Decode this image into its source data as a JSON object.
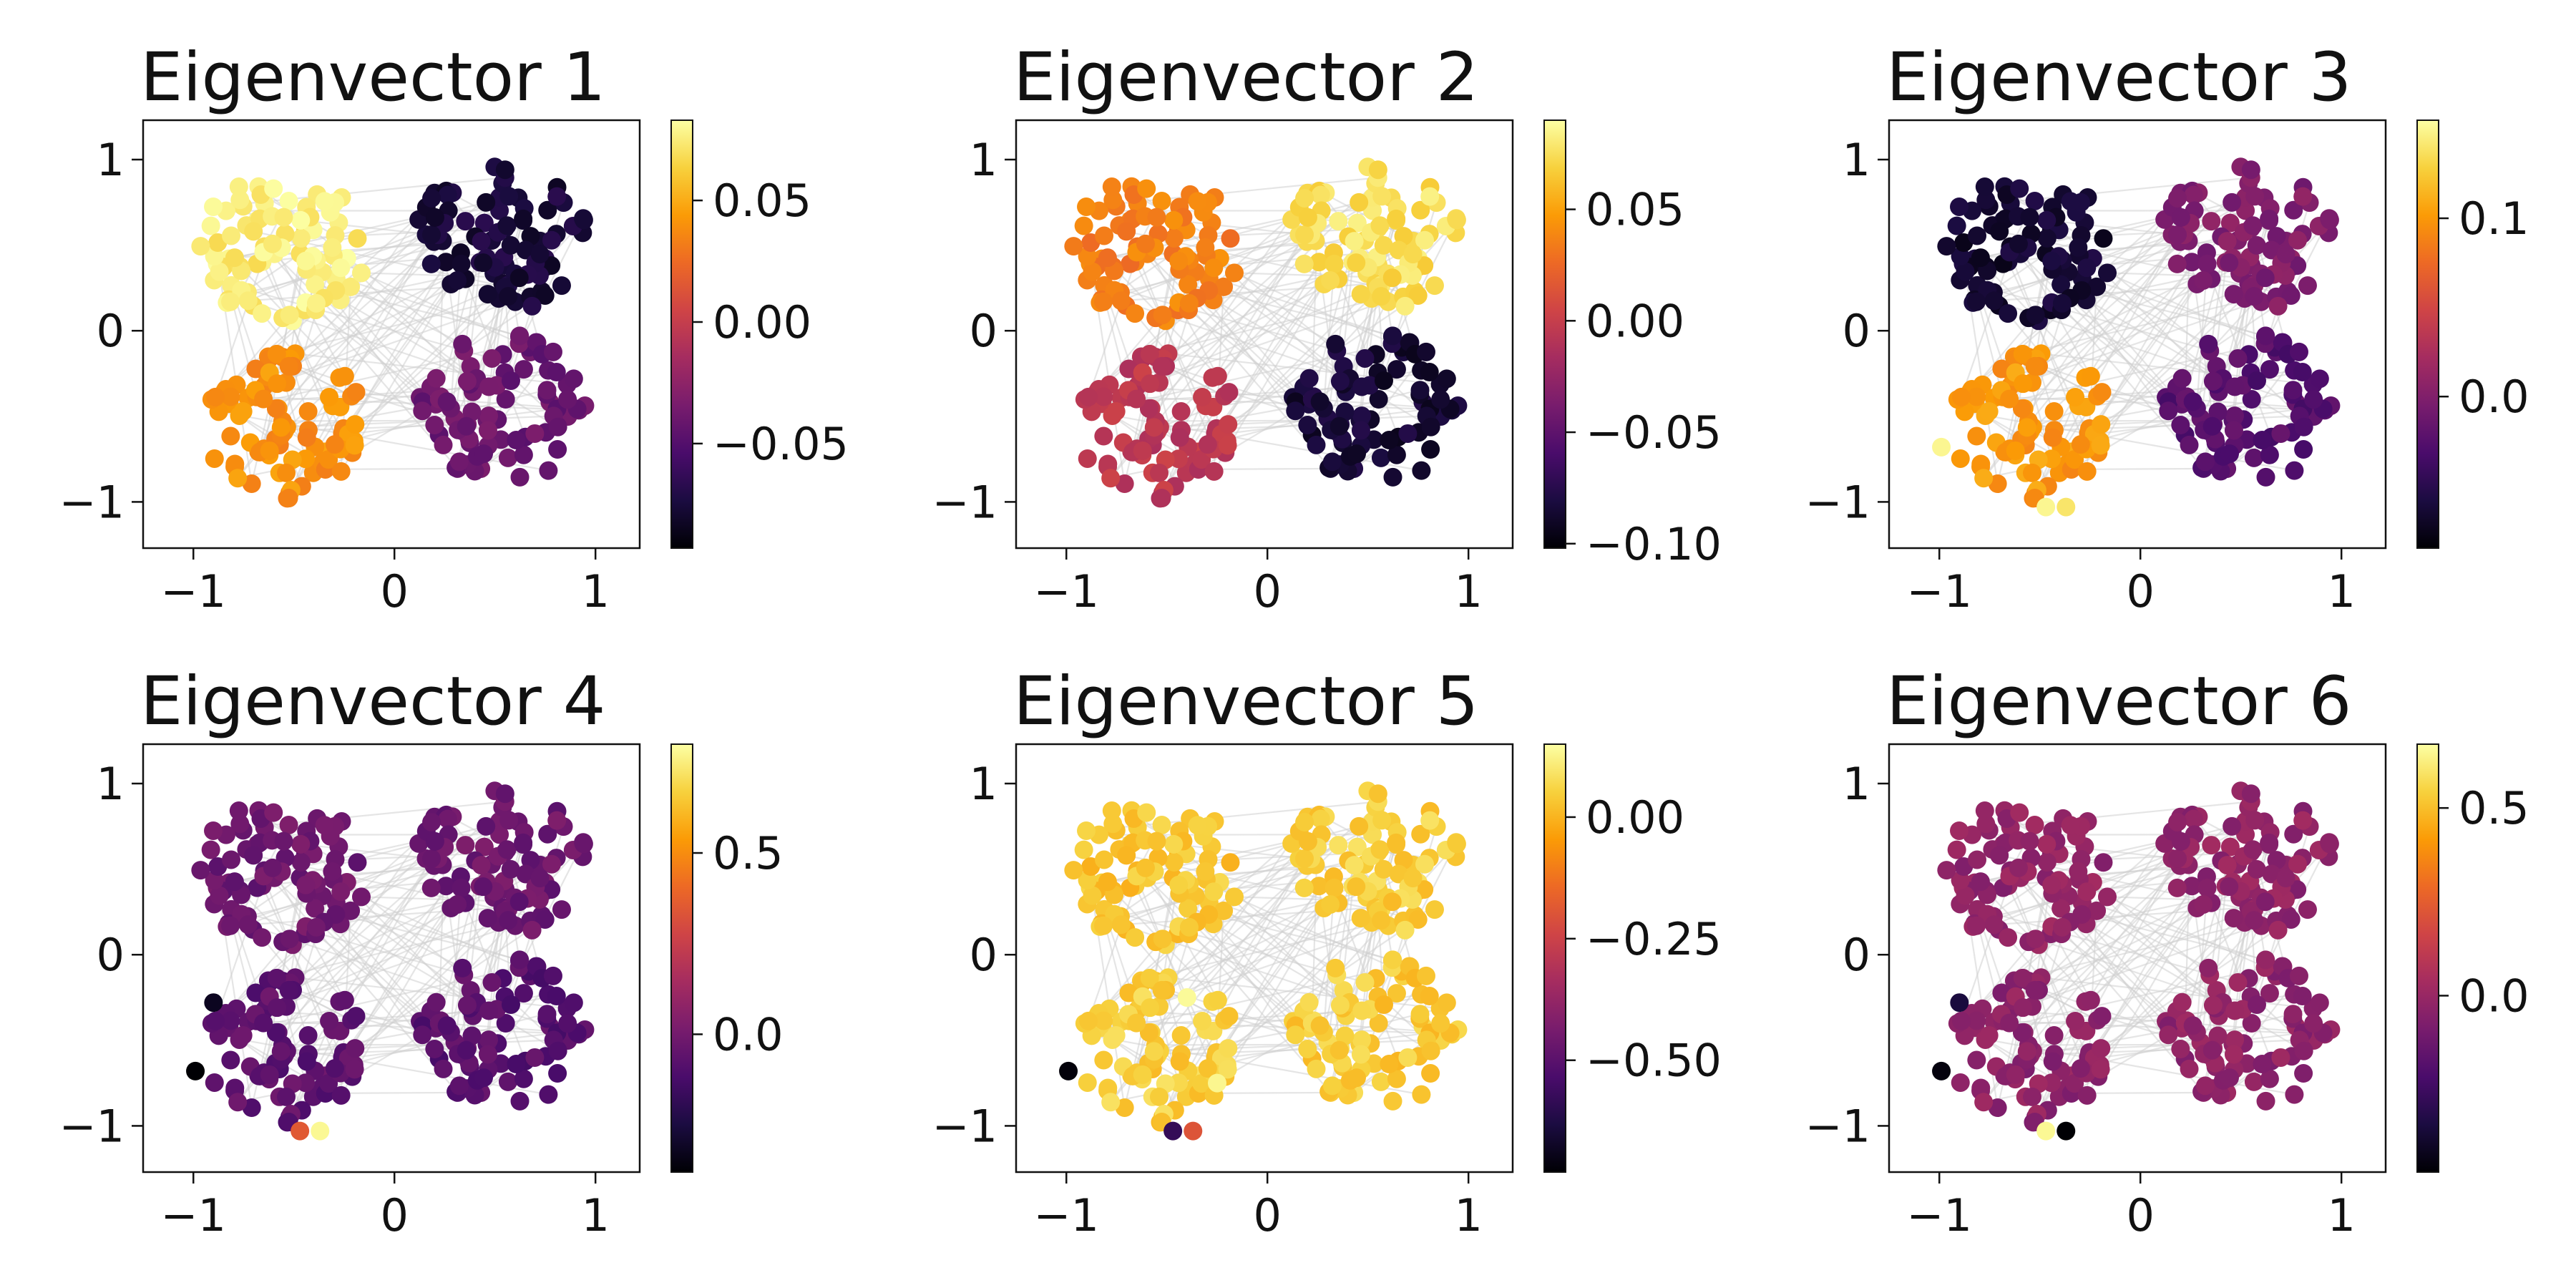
{
  "figure": {
    "colormap": "inferno",
    "colormap_stops": [
      "#000004",
      "#1b0c41",
      "#4a0c6b",
      "#781c6d",
      "#a52c60",
      "#cf4446",
      "#ed6925",
      "#fb9b06",
      "#f7d13d",
      "#fcffa4"
    ],
    "edge_color": "#d3d3d3",
    "x_ticks": [
      {
        "value": -1,
        "label": "−1"
      },
      {
        "value": 0,
        "label": "0"
      },
      {
        "value": 1,
        "label": "1"
      }
    ],
    "y_ticks": [
      {
        "value": 1,
        "label": "1"
      },
      {
        "value": 0,
        "label": "0"
      },
      {
        "value": -1,
        "label": "−1"
      }
    ],
    "xlim": [
      -1.25,
      1.22
    ],
    "ylim": [
      -1.27,
      1.23
    ]
  },
  "chart_data": [
    {
      "type": "scatter",
      "title": "Eigenvector 1",
      "clusters": {
        "top_left": 0.075,
        "top_right": -0.075,
        "bottom_left": 0.04,
        "bottom_right": -0.04
      },
      "anomalies": [],
      "colorbar": {
        "range": [
          -0.093,
          0.083
        ],
        "ticks": [
          {
            "value": 0.05,
            "label": "0.05"
          },
          {
            "value": 0.0,
            "label": "0.00"
          },
          {
            "value": -0.05,
            "label": "−0.05"
          }
        ]
      }
    },
    {
      "type": "scatter",
      "title": "Eigenvector 2",
      "clusters": {
        "top_left": 0.035,
        "top_right": 0.075,
        "bottom_left": -0.005,
        "bottom_right": -0.085
      },
      "anomalies": [],
      "colorbar": {
        "range": [
          -0.102,
          0.09
        ],
        "ticks": [
          {
            "value": 0.05,
            "label": "0.05"
          },
          {
            "value": 0.0,
            "label": "0.00"
          },
          {
            "value": -0.05,
            "label": "−0.05"
          },
          {
            "value": -0.1,
            "label": "−0.10"
          }
        ]
      }
    },
    {
      "type": "scatter",
      "title": "Eigenvector 3",
      "clusters": {
        "top_left": -0.065,
        "top_right": 0.0,
        "bottom_left": 0.1,
        "bottom_right": -0.025
      },
      "anomalies": [
        {
          "x": -0.99,
          "y": -0.68,
          "value": 0.15
        },
        {
          "x": -0.47,
          "y": -1.03,
          "value": 0.15
        },
        {
          "x": -0.37,
          "y": -1.03,
          "value": 0.14
        }
      ],
      "colorbar": {
        "range": [
          -0.085,
          0.155
        ],
        "ticks": [
          {
            "value": 0.1,
            "label": "0.1"
          },
          {
            "value": 0.0,
            "label": "0.0"
          }
        ]
      }
    },
    {
      "type": "scatter",
      "title": "Eigenvector 4",
      "clusters": {
        "top_left": -0.02,
        "top_right": -0.02,
        "bottom_left": -0.06,
        "bottom_right": -0.08
      },
      "anomalies": [
        {
          "x": -0.99,
          "y": -0.68,
          "value": -0.38
        },
        {
          "x": -0.9,
          "y": -0.28,
          "value": -0.32
        },
        {
          "x": -0.47,
          "y": -1.03,
          "value": 0.35
        },
        {
          "x": -0.37,
          "y": -1.03,
          "value": 0.78
        }
      ],
      "colorbar": {
        "range": [
          -0.38,
          0.8
        ],
        "ticks": [
          {
            "value": 0.5,
            "label": "0.5"
          },
          {
            "value": 0.0,
            "label": "0.0"
          }
        ]
      }
    },
    {
      "type": "scatter",
      "title": "Eigenvector 5",
      "clusters": {
        "top_left": 0.03,
        "top_right": 0.05,
        "bottom_left": 0.05,
        "bottom_right": 0.04
      },
      "anomalies": [
        {
          "x": -0.99,
          "y": -0.68,
          "value": -0.72
        },
        {
          "x": -0.47,
          "y": -1.03,
          "value": -0.58
        },
        {
          "x": -0.37,
          "y": -1.03,
          "value": -0.2
        },
        {
          "x": -0.4,
          "y": -0.25,
          "value": 0.14
        },
        {
          "x": -0.25,
          "y": -0.75,
          "value": 0.13
        }
      ],
      "colorbar": {
        "range": [
          -0.73,
          0.15
        ],
        "ticks": [
          {
            "value": 0.0,
            "label": "0.00"
          },
          {
            "value": -0.25,
            "label": "−0.25"
          },
          {
            "value": -0.5,
            "label": "−0.50"
          }
        ]
      }
    },
    {
      "type": "scatter",
      "title": "Eigenvector 6",
      "clusters": {
        "top_left": -0.02,
        "top_right": -0.02,
        "bottom_left": -0.03,
        "bottom_right": -0.03
      },
      "anomalies": [
        {
          "x": -0.99,
          "y": -0.68,
          "value": -0.45
        },
        {
          "x": -0.9,
          "y": -0.28,
          "value": -0.35
        },
        {
          "x": -0.47,
          "y": -1.03,
          "value": 0.65
        },
        {
          "x": -0.37,
          "y": -1.03,
          "value": -0.47
        }
      ],
      "colorbar": {
        "range": [
          -0.47,
          0.67
        ],
        "ticks": [
          {
            "value": 0.5,
            "label": "0.5"
          },
          {
            "value": 0.0,
            "label": "0.0"
          }
        ]
      }
    }
  ]
}
